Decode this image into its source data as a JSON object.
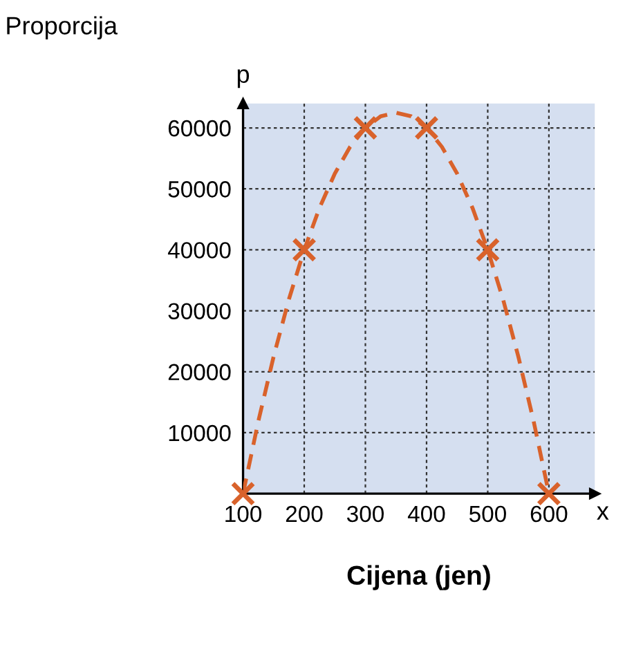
{
  "chart_data": {
    "type": "scatter",
    "ylabel": "Proporcija",
    "xlabel": "Cijena (jen)",
    "annotations": [
      "p",
      "x"
    ],
    "series": [
      {
        "color": "#d9622b",
        "marker": "cross",
        "x": [
          100,
          200,
          300,
          400,
          500,
          600
        ],
        "values": [
          0,
          40000,
          60000,
          60000,
          40000,
          0
        ]
      },
      {
        "type": "line",
        "color": "#d9622b",
        "line_style": "dashed",
        "marker": "none",
        "x": [
          100,
          125,
          150,
          175,
          200,
          225,
          250,
          275,
          300,
          325,
          350,
          375,
          400,
          425,
          450,
          475,
          500,
          525,
          550,
          575,
          600
        ],
        "values": [
          0,
          11900,
          22500,
          31900,
          40000,
          46900,
          52500,
          56900,
          60000,
          61900,
          62500,
          61900,
          60000,
          56900,
          52500,
          46900,
          40000,
          31900,
          22500,
          11900,
          0
        ]
      }
    ],
    "xlim": [
      100,
      675
    ],
    "ylim": [
      0,
      64000
    ],
    "xticks": [
      100,
      200,
      300,
      400,
      500,
      600
    ],
    "yticks": [
      10000,
      20000,
      30000,
      40000,
      50000,
      60000
    ],
    "grid": true
  }
}
